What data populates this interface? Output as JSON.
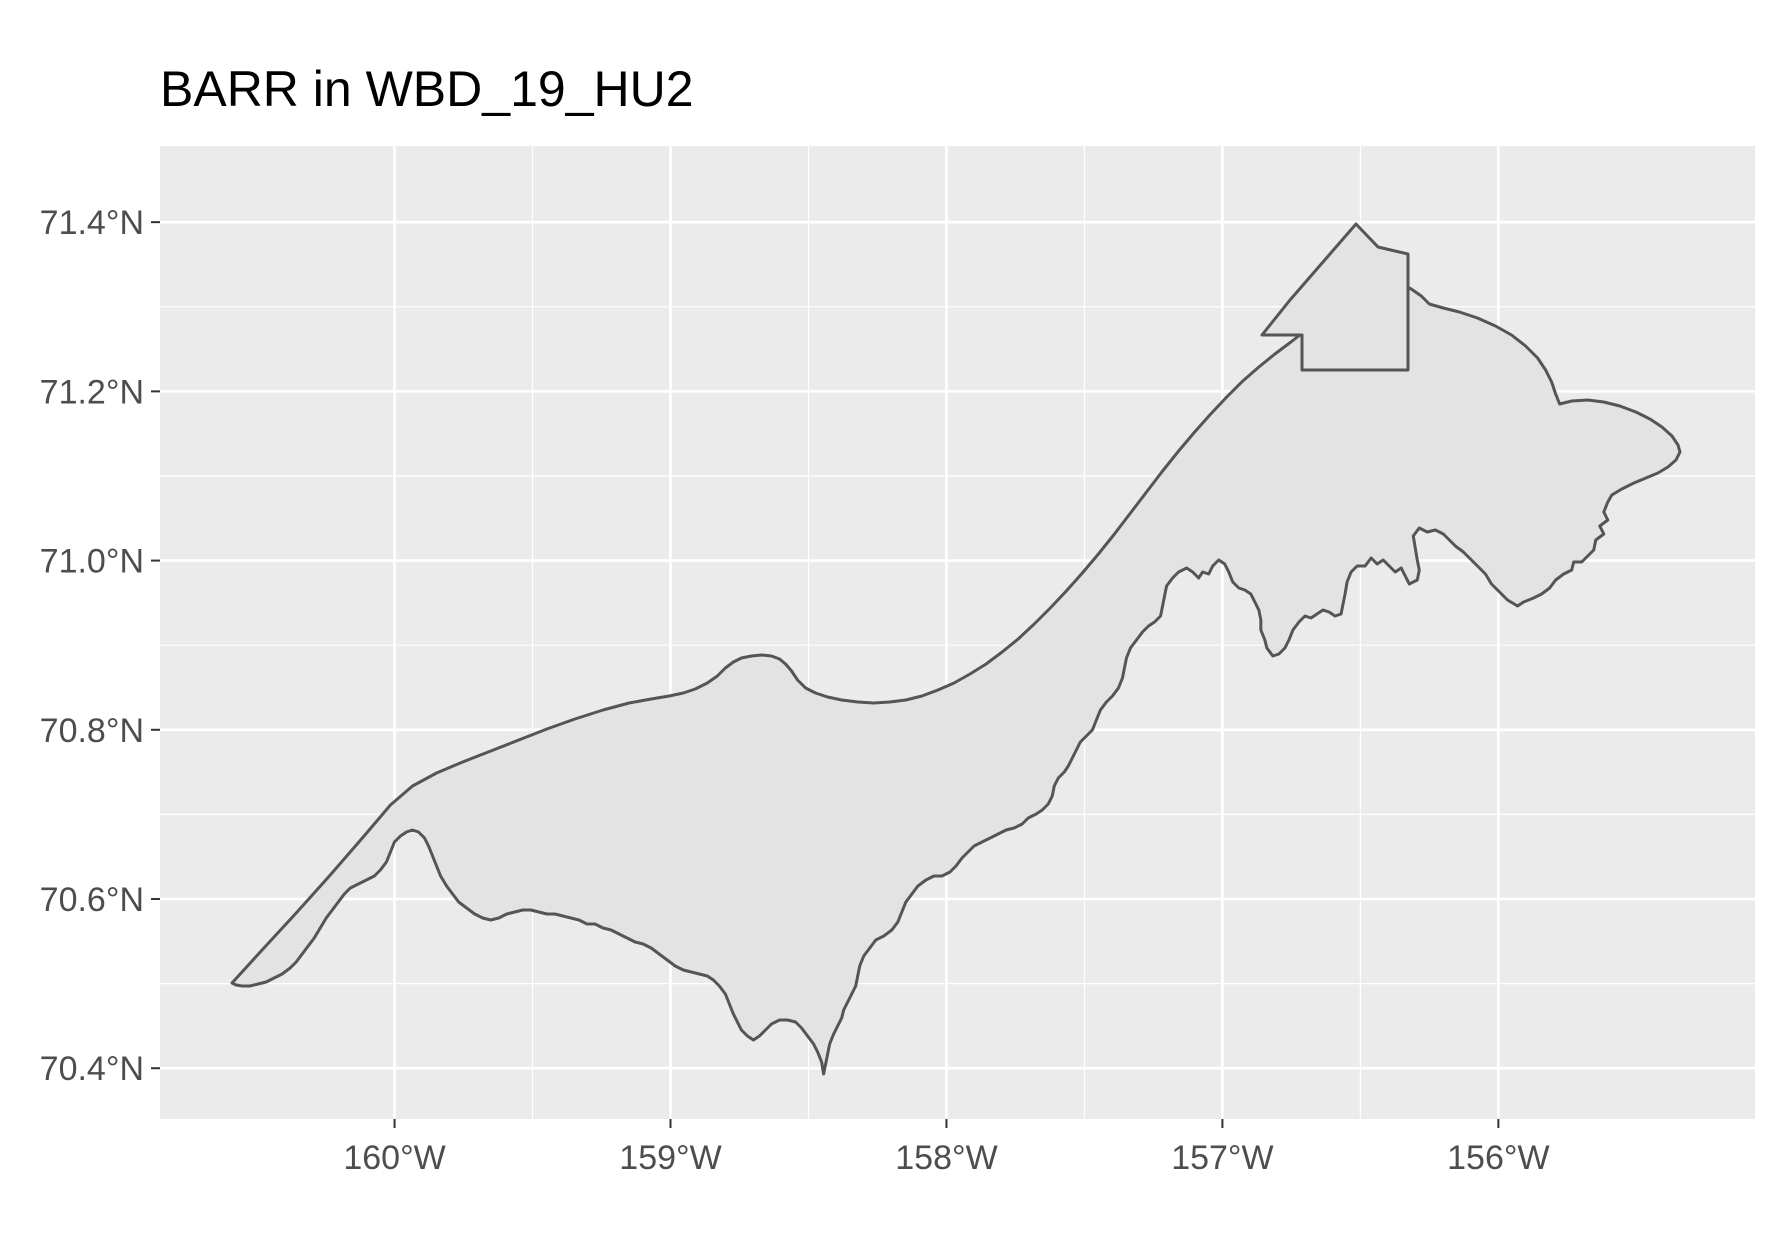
{
  "title": "BARR in WBD_19_HU2",
  "map": {
    "panel_background": "#ebebeb",
    "grid_color": "#ffffff",
    "region_fill": "#e3e3e3",
    "region_stroke": "#555555",
    "x_ticks": [
      {
        "value": -160,
        "label": "160°W"
      },
      {
        "value": -159,
        "label": "159°W"
      },
      {
        "value": -158,
        "label": "158°W"
      },
      {
        "value": -157,
        "label": "157°W"
      },
      {
        "value": -156,
        "label": "156°W"
      }
    ],
    "y_ticks": [
      {
        "value": 70.4,
        "label": "70.4°N"
      },
      {
        "value": 70.6,
        "label": "70.6°N"
      },
      {
        "value": 70.8,
        "label": "70.8°N"
      },
      {
        "value": 71.0,
        "label": "71.0°N"
      },
      {
        "value": 71.2,
        "label": "71.2°N"
      },
      {
        "value": 71.4,
        "label": "71.4°N"
      }
    ],
    "xlim": [
      -160.85,
      -155.07
    ],
    "ylim": [
      70.34,
      71.49
    ]
  }
}
